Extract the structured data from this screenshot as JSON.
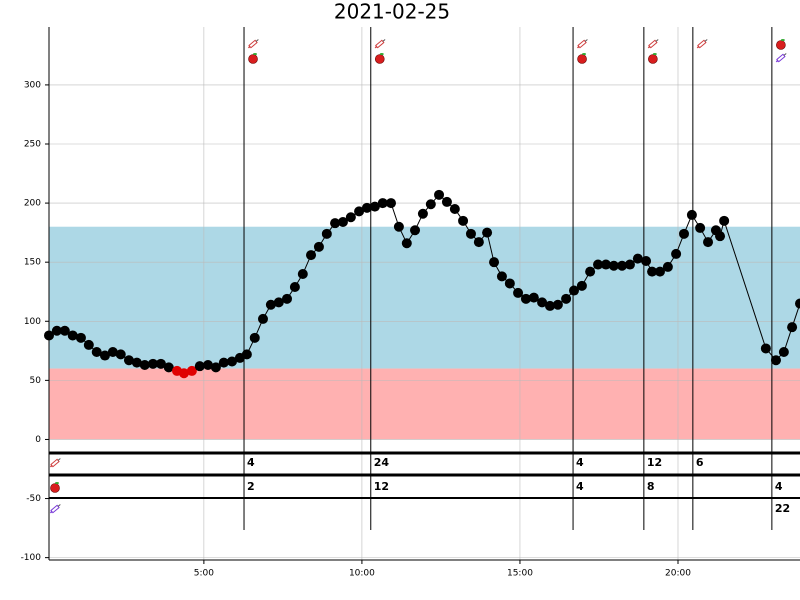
{
  "chart_data": {
    "type": "line",
    "title": "2021-02-25",
    "x": [
      0.1,
      0.35,
      0.6,
      0.85,
      1.11,
      1.36,
      1.61,
      1.87,
      2.12,
      2.37,
      2.63,
      2.88,
      3.13,
      3.39,
      3.64,
      3.89,
      4.15,
      4.37,
      4.62,
      4.87,
      5.13,
      5.38,
      5.63,
      5.89,
      6.14,
      6.36,
      6.61,
      6.87,
      7.12,
      7.37,
      7.63,
      7.88,
      8.13,
      8.39,
      8.64,
      8.89,
      9.15,
      9.4,
      9.65,
      9.91,
      10.16,
      10.41,
      10.66,
      10.92,
      11.17,
      11.42,
      11.68,
      11.93,
      12.18,
      12.44,
      12.69,
      12.94,
      13.2,
      13.45,
      13.7,
      13.96,
      14.18,
      14.43,
      14.68,
      14.94,
      15.19,
      15.44,
      15.7,
      15.95,
      16.2,
      16.46,
      16.71,
      16.96,
      17.22,
      17.47,
      17.72,
      17.97,
      18.23,
      18.48,
      18.73,
      18.99,
      19.18,
      19.43,
      19.68,
      19.94,
      20.19,
      20.44,
      20.7,
      20.95,
      21.2,
      21.33,
      21.46,
      22.78,
      23.1,
      23.35,
      23.61,
      23.86
    ],
    "values": [
      88,
      92,
      92,
      88,
      86,
      80,
      74,
      71,
      74,
      72,
      67,
      65,
      63,
      64,
      64,
      61,
      58,
      56,
      58,
      62,
      63,
      61,
      65,
      66,
      69,
      72,
      86,
      102,
      114,
      116,
      119,
      129,
      140,
      156,
      163,
      174,
      183,
      184,
      188,
      193,
      196,
      197,
      200,
      200,
      180,
      166,
      177,
      191,
      199,
      207,
      201,
      195,
      185,
      174,
      167,
      175,
      150,
      138,
      132,
      124,
      119,
      120,
      116,
      113,
      114,
      119,
      126,
      130,
      142,
      148,
      148,
      147,
      147,
      148,
      153,
      151,
      142,
      142,
      146,
      157,
      174,
      190,
      179,
      167,
      177,
      172,
      185,
      77,
      67,
      74,
      95,
      115
    ],
    "color": "#000000",
    "low_color": "#e00000",
    "target_range": [
      60,
      180
    ],
    "target_color": "#add8e6",
    "low_range": [
      0,
      60
    ],
    "low_range_color": "#ffb1b1",
    "xlim": [
      0.1,
      23.86
    ],
    "ylim": [
      -102,
      349
    ],
    "xticks": [
      {
        "value": 5,
        "label": "5:00"
      },
      {
        "value": 10,
        "label": "10:00"
      },
      {
        "value": 15,
        "label": "15:00"
      },
      {
        "value": 20,
        "label": "20:00"
      }
    ],
    "yticks": [
      -100,
      -50,
      0,
      50,
      100,
      150,
      200,
      250,
      300
    ],
    "grid": true,
    "events": {
      "x": [
        6.27,
        10.28,
        16.68,
        18.92,
        20.47,
        22.97
      ],
      "insulin": [
        4,
        24,
        4,
        12,
        6,
        null
      ],
      "carbs": [
        2,
        12,
        4,
        8,
        null,
        4
      ],
      "basal": [
        null,
        null,
        null,
        null,
        null,
        22
      ]
    }
  }
}
